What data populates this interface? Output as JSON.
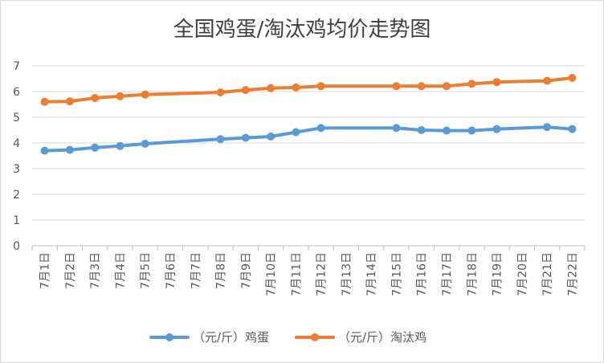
{
  "chart_data": {
    "type": "line",
    "title": "全国鸡蛋/淘汰鸡均价走势图",
    "categories": [
      "7月1日",
      "7月2日",
      "7月3日",
      "7月4日",
      "7月5日",
      "7月6日",
      "7月7日",
      "7月8日",
      "7月9日",
      "7月10日",
      "7月11日",
      "7月12日",
      "7月13日",
      "7月14日",
      "7月15日",
      "7月16日",
      "7月17日",
      "7月18日",
      "7月19日",
      "7月20日",
      "7月21日",
      "7月22日"
    ],
    "series": [
      {
        "name": "（元/斤）鸡蛋",
        "color": "#5b9bd5",
        "values": [
          3.7,
          3.73,
          3.82,
          3.88,
          3.97,
          null,
          null,
          4.15,
          4.2,
          4.25,
          4.42,
          4.58,
          null,
          null,
          4.58,
          4.5,
          4.48,
          4.48,
          4.54,
          null,
          4.62,
          4.54
        ]
      },
      {
        "name": "（元/斤）淘汰鸡",
        "color": "#ed7d31",
        "values": [
          5.6,
          5.62,
          5.75,
          5.82,
          5.88,
          null,
          null,
          5.97,
          6.06,
          6.13,
          6.16,
          6.21,
          null,
          null,
          6.21,
          6.21,
          6.21,
          6.3,
          6.37,
          null,
          6.42,
          6.53
        ]
      }
    ],
    "ylim": [
      0,
      7
    ],
    "yticks": [
      "0",
      "1",
      "2",
      "3",
      "4",
      "5",
      "6",
      "7"
    ],
    "grid": true,
    "legend": "bottom"
  }
}
